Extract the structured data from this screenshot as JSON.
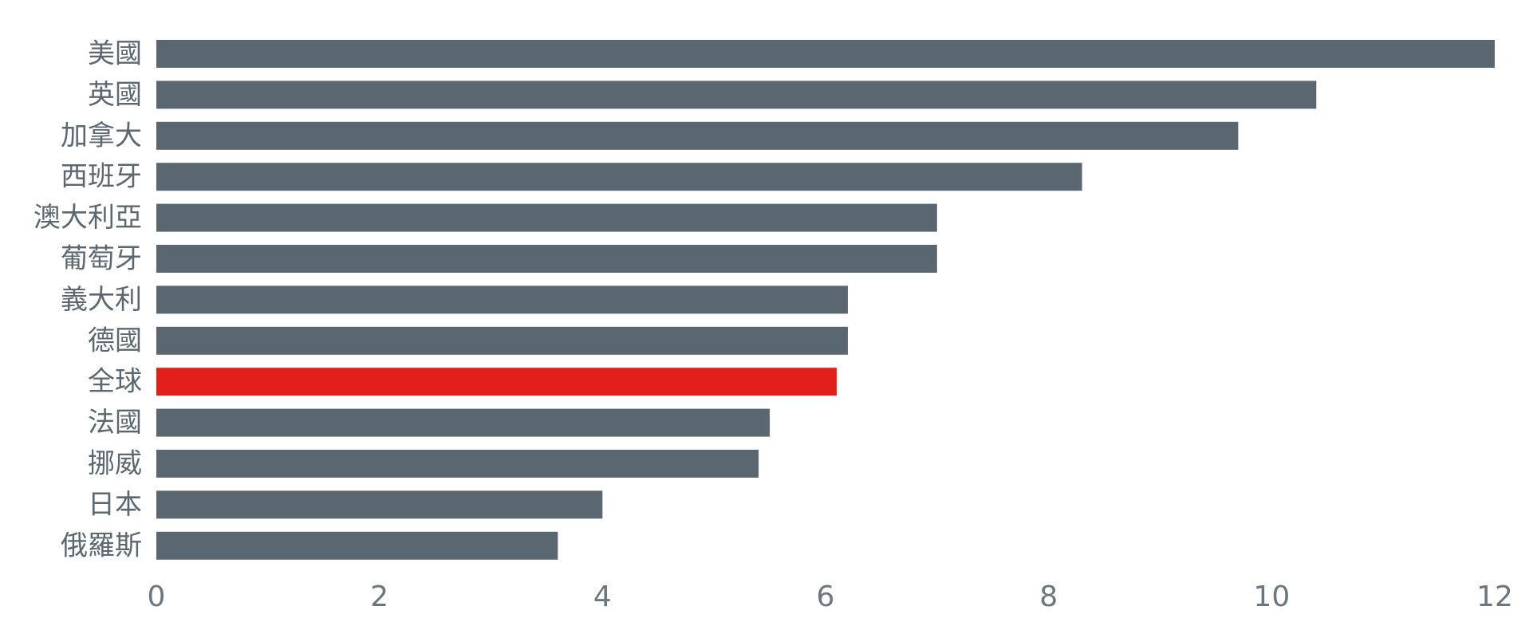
{
  "chart_data": {
    "type": "bar",
    "orientation": "horizontal",
    "categories": [
      "美國",
      "英國",
      "加拿大",
      "西班牙",
      "澳大利亞",
      "葡萄牙",
      "義大利",
      "德國",
      "全球",
      "法國",
      "挪威",
      "日本",
      "俄羅斯"
    ],
    "values": [
      12.0,
      10.4,
      9.7,
      8.3,
      7.0,
      7.0,
      6.2,
      6.2,
      6.1,
      5.5,
      5.4,
      4.0,
      3.6
    ],
    "highlight_category": "全球",
    "xlim": [
      0,
      12
    ],
    "xticks": [
      "0",
      "2",
      "4",
      "6",
      "8",
      "10",
      "12"
    ],
    "grid": false,
    "title": "",
    "xlabel": "",
    "ylabel": "",
    "colors": {
      "bar": "#5b6770",
      "highlight": "#e31f1c"
    }
  }
}
